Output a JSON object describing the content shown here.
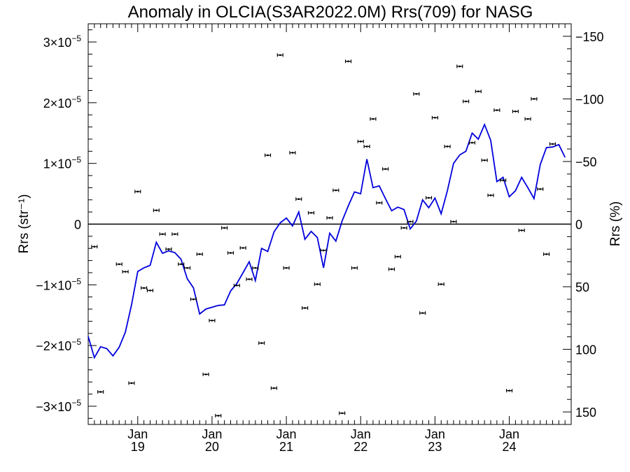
{
  "chart_data": {
    "type": "line",
    "title": "Anomaly in OLCIA(S3AR2022.0M) Rrs(709) for NASG",
    "ylabel_left": "Rrs (str⁻¹)",
    "ylabel_right": "Rrs (%)",
    "ylim": [
      -3.3e-05,
      3.3e-05
    ],
    "y2lim": [
      160,
      -160
    ],
    "xlim": [
      "2018-05",
      "2024-11"
    ],
    "left_ticks": [
      {
        "v": 3e-05,
        "m": "3",
        "e": "−5"
      },
      {
        "v": 2e-05,
        "m": "2",
        "e": "−5"
      },
      {
        "v": 1e-05,
        "m": "1",
        "e": "−5"
      },
      {
        "v": 0,
        "m": "0",
        "e": ""
      },
      {
        "v": -1e-05,
        "m": "−1",
        "e": "−5"
      },
      {
        "v": -2e-05,
        "m": "−2",
        "e": "−5"
      },
      {
        "v": -3e-05,
        "m": "−3",
        "e": "−5"
      }
    ],
    "right_ticks": [
      {
        "v": -150,
        "label": "−150"
      },
      {
        "v": -100,
        "label": "−100"
      },
      {
        "v": -50,
        "label": "−50"
      },
      {
        "v": 0,
        "label": "0"
      },
      {
        "v": 50,
        "label": "50"
      },
      {
        "v": 100,
        "label": "100"
      },
      {
        "v": 150,
        "label": "150"
      }
    ],
    "x_ticks": [
      {
        "date": "2019-01",
        "label": "Jan",
        "sublabel": "19"
      },
      {
        "date": "2020-01",
        "label": "Jan",
        "sublabel": "20"
      },
      {
        "date": "2021-01",
        "label": "Jan",
        "sublabel": "21"
      },
      {
        "date": "2022-01",
        "label": "Jan",
        "sublabel": "22"
      },
      {
        "date": "2023-01",
        "label": "Jan",
        "sublabel": "23"
      },
      {
        "date": "2024-01",
        "label": "Jan",
        "sublabel": "24"
      }
    ],
    "zero_line": true,
    "series": [
      {
        "kind": "line",
        "color": "#0000dd",
        "points": [
          [
            "2018-05",
            -1.85e-05
          ],
          [
            "2018-06",
            -2.2e-05
          ],
          [
            "2018-07",
            -2.02e-05
          ],
          [
            "2018-08",
            -2.05e-05
          ],
          [
            "2018-09",
            -2.17e-05
          ],
          [
            "2018-10",
            -2.03e-05
          ],
          [
            "2018-11",
            -1.78e-05
          ],
          [
            "2018-12",
            -1.33e-05
          ],
          [
            "2019-01",
            -7.8e-06
          ],
          [
            "2019-02",
            -7.2e-06
          ],
          [
            "2019-03",
            -6.8e-06
          ],
          [
            "2019-04",
            -3e-06
          ],
          [
            "2019-05",
            -4.8e-06
          ],
          [
            "2019-06",
            -4.4e-06
          ],
          [
            "2019-07",
            -4.7e-06
          ],
          [
            "2019-08",
            -5.8e-06
          ],
          [
            "2019-09",
            -9e-06
          ],
          [
            "2019-10",
            -1.05e-05
          ],
          [
            "2019-11",
            -1.48e-05
          ],
          [
            "2019-12",
            -1.4e-05
          ],
          [
            "2020-01",
            -1.37e-05
          ],
          [
            "2020-02",
            -1.34e-05
          ],
          [
            "2020-03",
            -1.33e-05
          ],
          [
            "2020-04",
            -1.1e-05
          ],
          [
            "2020-05",
            -9.8e-06
          ],
          [
            "2020-06",
            -8e-06
          ],
          [
            "2020-07",
            -6.2e-06
          ],
          [
            "2020-08",
            -9.3e-06
          ],
          [
            "2020-09",
            -4e-06
          ],
          [
            "2020-10",
            -4.5e-06
          ],
          [
            "2020-11",
            -1.3e-06
          ],
          [
            "2020-12",
            2e-07
          ],
          [
            "2021-01",
            1e-06
          ],
          [
            "2021-02",
            -3e-07
          ],
          [
            "2021-03",
            2e-06
          ],
          [
            "2021-04",
            -2.5e-06
          ],
          [
            "2021-05",
            -1.2e-06
          ],
          [
            "2021-06",
            -2.2e-06
          ],
          [
            "2021-07",
            -7.2e-06
          ],
          [
            "2021-08",
            -1.5e-06
          ],
          [
            "2021-09",
            -2.8e-06
          ],
          [
            "2021-10",
            5e-07
          ],
          [
            "2021-11",
            3e-06
          ],
          [
            "2021-12",
            5.3e-06
          ],
          [
            "2022-01",
            5e-06
          ],
          [
            "2022-02",
            1.07e-05
          ],
          [
            "2022-03",
            6e-06
          ],
          [
            "2022-04",
            6.3e-06
          ],
          [
            "2022-05",
            4.2e-06
          ],
          [
            "2022-06",
            2.2e-06
          ],
          [
            "2022-07",
            2.8e-06
          ],
          [
            "2022-08",
            2.4e-06
          ],
          [
            "2022-09",
            -8e-07
          ],
          [
            "2022-10",
            5e-07
          ],
          [
            "2022-11",
            4e-06
          ],
          [
            "2022-12",
            2.7e-06
          ],
          [
            "2023-01",
            4.3e-06
          ],
          [
            "2023-02",
            1.7e-06
          ],
          [
            "2023-03",
            5.5e-06
          ],
          [
            "2023-04",
            1e-05
          ],
          [
            "2023-05",
            1.14e-05
          ],
          [
            "2023-06",
            1.2e-05
          ],
          [
            "2023-07",
            1.5e-05
          ],
          [
            "2023-08",
            1.4e-05
          ],
          [
            "2023-09",
            1.64e-05
          ],
          [
            "2023-10",
            1.38e-05
          ],
          [
            "2023-11",
            7e-06
          ],
          [
            "2023-12",
            7.7e-06
          ],
          [
            "2024-01",
            4.5e-06
          ],
          [
            "2024-02",
            5.5e-06
          ],
          [
            "2024-03",
            7.7e-06
          ],
          [
            "2024-04",
            6e-06
          ],
          [
            "2024-05",
            4.2e-06
          ],
          [
            "2024-06",
            9.8e-06
          ],
          [
            "2024-07",
            1.26e-05
          ],
          [
            "2024-08",
            1.27e-05
          ],
          [
            "2024-09",
            1.31e-05
          ],
          [
            "2024-10",
            1.1e-05
          ]
        ]
      },
      {
        "kind": "points",
        "marker": "error-bar",
        "color": "#000000",
        "axis": "right",
        "points": [
          [
            "2018-06",
            18
          ],
          [
            "2018-07",
            134
          ],
          [
            "2018-10",
            32
          ],
          [
            "2018-11",
            38
          ],
          [
            "2018-12",
            127
          ],
          [
            "2019-01",
            -26
          ],
          [
            "2019-02",
            51
          ],
          [
            "2019-03",
            53
          ],
          [
            "2019-04",
            -11
          ],
          [
            "2019-05",
            8
          ],
          [
            "2019-06",
            20
          ],
          [
            "2019-07",
            8
          ],
          [
            "2019-08",
            32
          ],
          [
            "2019-09",
            35
          ],
          [
            "2019-10",
            60
          ],
          [
            "2019-11",
            24
          ],
          [
            "2019-12",
            120
          ],
          [
            "2020-01",
            77
          ],
          [
            "2020-02",
            153
          ],
          [
            "2020-03",
            3
          ],
          [
            "2020-04",
            23
          ],
          [
            "2020-05",
            49
          ],
          [
            "2020-06",
            19
          ],
          [
            "2020-07",
            44
          ],
          [
            "2020-08",
            35
          ],
          [
            "2020-09",
            95
          ],
          [
            "2020-10",
            -55
          ],
          [
            "2020-11",
            131
          ],
          [
            "2020-12",
            -135
          ],
          [
            "2021-01",
            35
          ],
          [
            "2021-02",
            -57
          ],
          [
            "2021-03",
            -20
          ],
          [
            "2021-04",
            67
          ],
          [
            "2021-05",
            -9
          ],
          [
            "2021-06",
            48
          ],
          [
            "2021-07",
            21
          ],
          [
            "2021-08",
            -5
          ],
          [
            "2021-09",
            -27
          ],
          [
            "2021-10",
            151
          ],
          [
            "2021-11",
            -130
          ],
          [
            "2021-12",
            35
          ],
          [
            "2022-01",
            -66
          ],
          [
            "2022-02",
            -62
          ],
          [
            "2022-03",
            -84
          ],
          [
            "2022-04",
            -17
          ],
          [
            "2022-05",
            -44
          ],
          [
            "2022-06",
            36
          ],
          [
            "2022-07",
            26
          ],
          [
            "2022-08",
            3
          ],
          [
            "2022-09",
            -2
          ],
          [
            "2022-10",
            -104
          ],
          [
            "2022-11",
            71
          ],
          [
            "2022-12",
            -21
          ],
          [
            "2023-01",
            -85
          ],
          [
            "2023-02",
            48
          ],
          [
            "2023-03",
            -62
          ],
          [
            "2023-04",
            -2
          ],
          [
            "2023-05",
            -126
          ],
          [
            "2023-06",
            -98
          ],
          [
            "2023-07",
            -65
          ],
          [
            "2023-08",
            -106
          ],
          [
            "2023-09",
            -51
          ],
          [
            "2023-10",
            -23
          ],
          [
            "2023-11",
            -91
          ],
          [
            "2023-12",
            -35
          ],
          [
            "2024-01",
            133
          ],
          [
            "2024-02",
            -90
          ],
          [
            "2024-03",
            5
          ],
          [
            "2024-04",
            -84
          ],
          [
            "2024-05",
            -100
          ],
          [
            "2024-06",
            -28
          ],
          [
            "2024-07",
            24
          ],
          [
            "2024-08",
            -64
          ]
        ]
      }
    ]
  }
}
